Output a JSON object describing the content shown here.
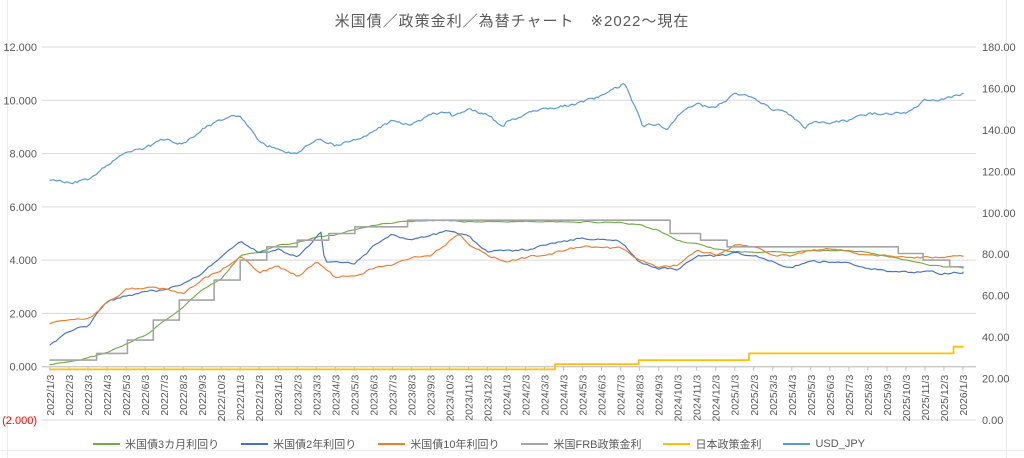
{
  "title": "米国債／政策金利／為替チャート　※2022～現在",
  "chart_data": {
    "type": "line",
    "title": "米国債／政策金利／為替チャート　※2022～現在",
    "grid": true,
    "legend_position": "bottom",
    "x_labels": [
      "2022/1/3",
      "2022/2/3",
      "2022/3/3",
      "2022/4/3",
      "2022/5/3",
      "2022/6/3",
      "2022/7/3",
      "2022/8/3",
      "2022/9/3",
      "2022/10/3",
      "2022/11/3",
      "2022/12/3",
      "2023/1/3",
      "2023/2/3",
      "2023/3/3",
      "2023/4/3",
      "2023/5/3",
      "2023/6/3",
      "2023/7/3",
      "2023/8/3",
      "2023/9/3",
      "2023/10/3",
      "2023/11/3",
      "2023/12/3",
      "2024/1/3",
      "2024/2/3",
      "2024/3/3",
      "2024/4/3",
      "2024/5/3",
      "2024/6/3",
      "2024/7/3",
      "2024/8/3",
      "2024/9/3",
      "2024/10/3",
      "2024/11/3",
      "2024/12/3",
      "2025/1/3",
      "2025/2/3",
      "2025/3/3",
      "2025/4/3",
      "2025/5/3",
      "2025/6/3",
      "2025/7/3",
      "2025/8/3",
      "2025/9/3",
      "2025/10/3",
      "2025/11/3",
      "2025/12/3",
      "2026/1/3"
    ],
    "left_axis": {
      "min": -2,
      "max": 12,
      "ticks": [
        {
          "value": 12,
          "label": "12.000"
        },
        {
          "value": 10,
          "label": "10.000"
        },
        {
          "value": 8,
          "label": "8.000"
        },
        {
          "value": 6,
          "label": "6.000"
        },
        {
          "value": 4,
          "label": "4.000"
        },
        {
          "value": 2,
          "label": "2.000"
        },
        {
          "value": 0,
          "label": "0.000"
        },
        {
          "value": -2,
          "label": "(2.000)"
        }
      ]
    },
    "right_axis": {
      "min": 0,
      "max": 180,
      "ticks": [
        {
          "value": 180,
          "label": "180.00"
        },
        {
          "value": 160,
          "label": "160.00"
        },
        {
          "value": 140,
          "label": "140.00"
        },
        {
          "value": 120,
          "label": "120.00"
        },
        {
          "value": 100,
          "label": "100.00"
        },
        {
          "value": 80,
          "label": "80.00"
        },
        {
          "value": 60,
          "label": "60.00"
        },
        {
          "value": 40,
          "label": "40.00"
        },
        {
          "value": 20,
          "label": "20.00"
        },
        {
          "value": 0,
          "label": "0.00"
        }
      ]
    },
    "colors": {
      "grid": "#d9d9d9",
      "axis": "#bfbfbf",
      "text": "#595959",
      "negative_tick": "#ff0000"
    },
    "series": [
      {
        "name": "米国債3カ月利回り",
        "color": "#70AD47",
        "axis": "left",
        "style": "noisy",
        "jitter": 0.03,
        "density": 0.18,
        "width": 1.15,
        "values": [
          0.08,
          0.19,
          0.33,
          0.52,
          0.85,
          1.18,
          1.7,
          2.25,
          2.9,
          3.3,
          4.15,
          4.3,
          4.55,
          4.65,
          4.85,
          4.95,
          5.15,
          5.32,
          5.4,
          5.45,
          5.48,
          5.5,
          5.45,
          5.45,
          5.45,
          5.45,
          5.45,
          5.45,
          5.45,
          5.42,
          5.4,
          5.3,
          5.12,
          4.72,
          4.6,
          4.42,
          4.3,
          4.3,
          4.3,
          4.3,
          4.35,
          4.35,
          4.35,
          4.32,
          4.15,
          4.0,
          3.85,
          3.75,
          3.7
        ]
      },
      {
        "name": "米国債2年利回り",
        "color": "#4472C4",
        "axis": "left",
        "style": "noisy",
        "jitter": 0.055,
        "density": 0.16,
        "width": 1.15,
        "values": [
          0.78,
          1.3,
          1.55,
          2.45,
          2.65,
          2.85,
          2.85,
          3.1,
          3.5,
          4.1,
          4.7,
          4.3,
          4.4,
          4.1,
          4.85,
          3.95,
          3.85,
          4.5,
          4.95,
          4.75,
          4.95,
          5.1,
          4.85,
          4.3,
          4.35,
          4.4,
          4.6,
          4.7,
          4.85,
          4.75,
          4.7,
          3.9,
          3.7,
          3.65,
          4.15,
          4.15,
          4.25,
          4.2,
          3.95,
          3.75,
          3.95,
          3.95,
          3.9,
          3.7,
          3.6,
          3.55,
          3.6,
          3.5,
          3.55
        ],
        "extra": [
          [
            14.25,
            5.05
          ],
          [
            14.45,
            3.9
          ]
        ]
      },
      {
        "name": "米国債10年利回り",
        "color": "#ED7D31",
        "axis": "left",
        "style": "noisy",
        "jitter": 0.055,
        "density": 0.16,
        "width": 1.15,
        "values": [
          1.63,
          1.8,
          1.75,
          2.4,
          2.9,
          2.95,
          2.9,
          2.75,
          3.25,
          3.65,
          4.15,
          3.55,
          3.75,
          3.4,
          3.95,
          3.35,
          3.4,
          3.7,
          3.85,
          4.05,
          4.2,
          4.7,
          4.6,
          4.2,
          3.95,
          4.1,
          4.2,
          4.35,
          4.55,
          4.45,
          4.45,
          3.95,
          3.75,
          3.8,
          4.35,
          4.2,
          4.55,
          4.5,
          4.2,
          4.15,
          4.35,
          4.45,
          4.3,
          4.25,
          4.15,
          4.1,
          4.1,
          4.1,
          4.15
        ],
        "extra": [
          [
            21.5,
            4.95
          ]
        ]
      },
      {
        "name": "米国FRB政策金利",
        "color": "#A5A5A5",
        "axis": "left",
        "style": "step",
        "width": 1.6,
        "steps": [
          [
            0,
            0.25
          ],
          [
            2.45,
            0.5
          ],
          [
            4.07,
            1.0
          ],
          [
            5.43,
            1.75
          ],
          [
            6.8,
            2.5
          ],
          [
            8.63,
            3.25
          ],
          [
            10.0,
            4.0
          ],
          [
            11.4,
            4.5
          ],
          [
            13.0,
            4.75
          ],
          [
            14.65,
            5.0
          ],
          [
            16.03,
            5.25
          ],
          [
            18.8,
            5.5
          ],
          [
            32.6,
            5.0
          ],
          [
            34.2,
            4.75
          ],
          [
            35.6,
            4.5
          ],
          [
            44.6,
            4.25
          ],
          [
            45.9,
            4.0
          ],
          [
            47.3,
            3.75
          ]
        ]
      },
      {
        "name": "日本政策金利",
        "color": "#FFC000",
        "axis": "left",
        "style": "step",
        "width": 1.8,
        "steps": [
          [
            0,
            -0.1
          ],
          [
            26.55,
            0.1
          ],
          [
            30.95,
            0.25
          ],
          [
            36.75,
            0.5
          ],
          [
            47.5,
            0.75
          ]
        ]
      },
      {
        "name": "USD_JPY",
        "color": "#5B9BD5",
        "axis": "right",
        "style": "noisy",
        "jitter": 0.9,
        "density": 0.11,
        "width": 1.2,
        "values": [
          115.1,
          114.7,
          115.5,
          122.5,
          130.1,
          130.9,
          135.2,
          133.2,
          140.3,
          145.1,
          147.1,
          134.5,
          130.5,
          128.7,
          135.9,
          132.5,
          134.9,
          139.0,
          144.5,
          142.5,
          147.5,
          149.3,
          149.9,
          147.2,
          143.3,
          146.9,
          150.5,
          151.6,
          153.5,
          156.1,
          161.3,
          146.3,
          143.4,
          146.5,
          152.3,
          150.5,
          157.2,
          155.3,
          149.9,
          146.8,
          143.7,
          143.5,
          144.5,
          147.4,
          148.4,
          147.5,
          154.1,
          155.5,
          157.5
        ],
        "extra": [
          [
            21.07,
            147.2
          ],
          [
            23.85,
            141.2
          ],
          [
            30.2,
            161.7
          ],
          [
            31.15,
            142.2
          ],
          [
            32.4,
            140.5
          ],
          [
            39.7,
            140.8
          ]
        ]
      }
    ]
  }
}
